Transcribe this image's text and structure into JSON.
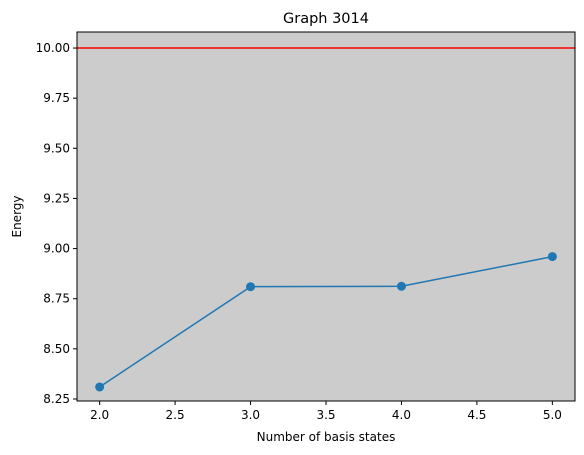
{
  "chart_data": {
    "type": "line",
    "title": "Graph 3014",
    "xlabel": "Number of basis states",
    "ylabel": "Energy",
    "xlim": [
      1.85,
      5.15
    ],
    "ylim": [
      8.24,
      10.08
    ],
    "xticks": [
      2.0,
      2.5,
      3.0,
      3.5,
      4.0,
      4.5,
      5.0
    ],
    "xtick_labels": [
      "2.0",
      "2.5",
      "3.0",
      "3.5",
      "4.0",
      "4.5",
      "5.0"
    ],
    "yticks": [
      8.25,
      8.5,
      8.75,
      9.0,
      9.25,
      9.5,
      9.75,
      10.0
    ],
    "ytick_labels": [
      "8.25",
      "8.50",
      "8.75",
      "9.00",
      "9.25",
      "9.50",
      "9.75",
      "10.00"
    ],
    "grid": false,
    "background_color": "#cccccc",
    "series": [
      {
        "x": [
          2.0,
          3.0,
          4.0,
          5.0
        ],
        "values": [
          8.31,
          8.81,
          8.812,
          8.96
        ],
        "color": "#1f77b4",
        "marker": "circle"
      }
    ],
    "reference_line": {
      "orientation": "horizontal",
      "y": 10.0,
      "color": "#ff0000"
    }
  }
}
